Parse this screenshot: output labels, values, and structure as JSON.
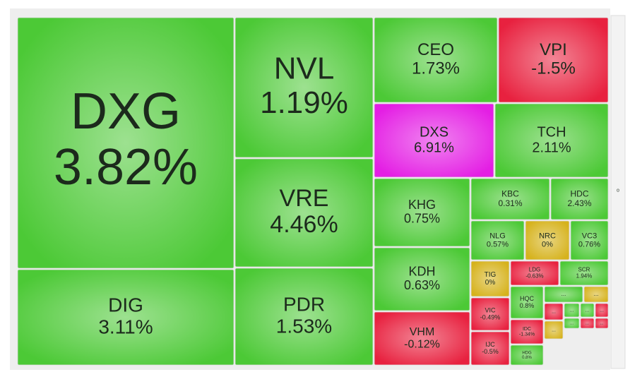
{
  "chart_data": {
    "type": "treemap",
    "categories": [
      "DXG",
      "DIG",
      "NVL",
      "VRE",
      "PDR",
      "CEO",
      "VPI",
      "DXS",
      "TCH",
      "KHG",
      "KDH",
      "VHM",
      "KBC",
      "HDC",
      "NLG",
      "NRC",
      "VC3",
      "TIG",
      "LDG",
      "SCR",
      "VIC",
      "IJC",
      "HQC",
      "IDC",
      "HDG",
      "...",
      "...",
      "...",
      "...",
      "...",
      "...",
      "...",
      "...",
      "...",
      "..."
    ],
    "values": [
      3.82,
      3.11,
      1.19,
      4.46,
      1.53,
      1.73,
      -1.5,
      6.91,
      2.11,
      0.75,
      0.63,
      -0.12,
      0.31,
      2.43,
      0.57,
      0,
      0.76,
      0,
      -0.63,
      1.94,
      -0.49,
      -0.5,
      0.8,
      -1.34,
      0.8,
      null,
      null,
      null,
      null,
      null,
      null,
      null,
      null,
      null,
      null
    ],
    "value_labels": [
      "3.82%",
      "3.11%",
      "1.19%",
      "4.46%",
      "1.53%",
      "1.73%",
      "-1.5%",
      "6.91%",
      "2.11%",
      "0.75%",
      "0.63%",
      "-0.12%",
      "0.31%",
      "2.43%",
      "0.57%",
      "0%",
      "0.76%",
      "0%",
      "-0.63%",
      "1.94%",
      "-0.49%",
      "-0.5%",
      "0.8%",
      "-1.34%",
      "0.8%",
      null,
      null,
      null,
      null,
      null,
      null,
      null,
      null,
      null,
      null
    ],
    "colors": [
      "#4cc936",
      "#4cc936",
      "#4cc936",
      "#4cc936",
      "#4cc936",
      "#4cc936",
      "#e8213f",
      "#e41ee4",
      "#4cc936",
      "#4cc936",
      "#4cc936",
      "#e8213f",
      "#4cc936",
      "#4cc936",
      "#4cc936",
      "#d6b21c",
      "#4cc936",
      "#d6b21c",
      "#e8213f",
      "#4cc936",
      "#e8213f",
      "#e8213f",
      "#4cc936",
      "#e8213f",
      "#4cc936",
      "#4cc936",
      "#d6b21c",
      "#e8213f",
      "#4cc936",
      "#4cc936",
      "#e8213f",
      "#d6b21c",
      "#4cc936",
      "#e8213f",
      "#e8213f"
    ]
  }
}
